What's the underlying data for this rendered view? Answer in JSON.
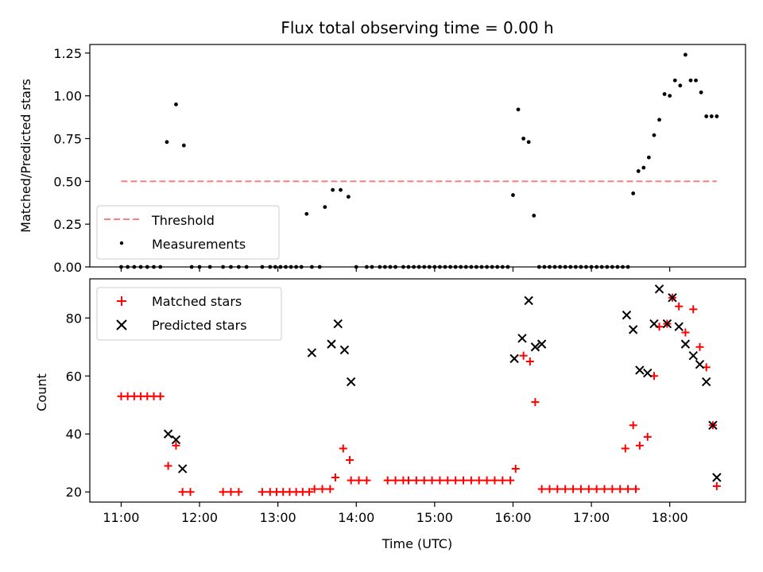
{
  "chart_data": [
    {
      "type": "scatter",
      "title": "Flux total observing time = 0.00 h",
      "xlabel": "",
      "ylabel": "Matched/Predicted stars",
      "ylim": [
        0,
        1.3
      ],
      "yticks": [
        "0.00",
        "0.25",
        "0.50",
        "0.75",
        "1.00",
        "1.25"
      ],
      "legend_position": "lower-left",
      "threshold": {
        "name": "Threshold",
        "value": 0.5,
        "x_start": "11:00",
        "x_end": "18:36",
        "color": "#ff7f7f"
      },
      "series": [
        {
          "name": "Measurements",
          "color": "#000000",
          "x": [
            "11:00",
            "11:05",
            "11:10",
            "11:15",
            "11:20",
            "11:25",
            "11:30",
            "11:35",
            "11:42",
            "11:48",
            "11:54",
            "12:00",
            "12:08",
            "12:18",
            "12:24",
            "12:30",
            "12:36",
            "12:48",
            "12:54",
            "12:58",
            "13:02",
            "13:06",
            "13:10",
            "13:14",
            "13:18",
            "13:22",
            "13:26",
            "13:32",
            "13:36",
            "13:42",
            "13:48",
            "13:54",
            "14:00",
            "14:08",
            "14:12",
            "14:18",
            "14:22",
            "14:26",
            "14:30",
            "14:36",
            "14:40",
            "14:44",
            "14:48",
            "14:52",
            "14:56",
            "15:00",
            "15:04",
            "15:08",
            "15:12",
            "15:16",
            "15:20",
            "15:24",
            "15:28",
            "15:32",
            "15:36",
            "15:40",
            "15:44",
            "15:48",
            "15:52",
            "15:56",
            "16:00",
            "16:04",
            "16:08",
            "16:12",
            "16:16",
            "16:20",
            "16:24",
            "16:28",
            "16:32",
            "16:36",
            "16:40",
            "16:44",
            "16:48",
            "16:52",
            "16:56",
            "17:00",
            "17:04",
            "17:08",
            "17:12",
            "17:16",
            "17:20",
            "17:24",
            "17:28",
            "17:32",
            "17:36",
            "17:40",
            "17:44",
            "17:48",
            "17:52",
            "17:56",
            "18:00",
            "18:04",
            "18:08",
            "18:12",
            "18:16",
            "18:20",
            "18:24",
            "18:28",
            "18:32",
            "18:36"
          ],
          "y": [
            0,
            0,
            0,
            0,
            0,
            0,
            0,
            0.73,
            0.95,
            0.71,
            0,
            0,
            0,
            0,
            0,
            0,
            0,
            0,
            0,
            0,
            0,
            0,
            0,
            0,
            0,
            0.31,
            0,
            0,
            0.35,
            0.45,
            0.45,
            0.41,
            0,
            0,
            0,
            0,
            0,
            0,
            0,
            0,
            0,
            0,
            0,
            0,
            0,
            0,
            0,
            0,
            0,
            0,
            0,
            0,
            0,
            0,
            0,
            0,
            0,
            0,
            0,
            0,
            0.42,
            0.92,
            0.75,
            0.73,
            0.3,
            0,
            0,
            0,
            0,
            0,
            0,
            0,
            0,
            0,
            0,
            0,
            0,
            0,
            0,
            0,
            0,
            0,
            0,
            0.43,
            0.56,
            0.58,
            0.64,
            0.77,
            0.86,
            1.01,
            1.0,
            1.09,
            1.06,
            1.24,
            1.09,
            1.09,
            1.02,
            0.88,
            0.88,
            0.88
          ]
        }
      ]
    },
    {
      "type": "scatter",
      "title": "",
      "xlabel": "Time (UTC)",
      "ylabel": "Count",
      "ylim": [
        16.5,
        93.5
      ],
      "yticks": [
        "20",
        "40",
        "60",
        "80"
      ],
      "xticks": [
        "11:00",
        "12:00",
        "13:00",
        "14:00",
        "15:00",
        "16:00",
        "17:00",
        "18:00"
      ],
      "xlim": [
        "10:36",
        "18:58"
      ],
      "legend_position": "upper-left",
      "series": [
        {
          "name": "Matched stars",
          "marker": "plus",
          "color": "#ff0000",
          "points": [
            [
              "11:00",
              53
            ],
            [
              "11:05",
              53
            ],
            [
              "11:10",
              53
            ],
            [
              "11:15",
              53
            ],
            [
              "11:20",
              53
            ],
            [
              "11:25",
              53
            ],
            [
              "11:30",
              53
            ],
            [
              "11:36",
              29
            ],
            [
              "11:42",
              36
            ],
            [
              "11:47",
              20
            ],
            [
              "11:53",
              20
            ],
            [
              "12:18",
              20
            ],
            [
              "12:24",
              20
            ],
            [
              "12:30",
              20
            ],
            [
              "12:48",
              20
            ],
            [
              "12:54",
              20
            ],
            [
              "12:59",
              20
            ],
            [
              "13:04",
              20
            ],
            [
              "13:09",
              20
            ],
            [
              "13:14",
              20
            ],
            [
              "13:19",
              20
            ],
            [
              "13:24",
              20
            ],
            [
              "13:28",
              21
            ],
            [
              "13:34",
              21
            ],
            [
              "13:40",
              21
            ],
            [
              "13:44",
              25
            ],
            [
              "13:50",
              35
            ],
            [
              "13:55",
              31
            ],
            [
              "13:56",
              24
            ],
            [
              "14:02",
              24
            ],
            [
              "14:08",
              24
            ],
            [
              "14:24",
              24
            ],
            [
              "14:30",
              24
            ],
            [
              "14:36",
              24
            ],
            [
              "14:40",
              24
            ],
            [
              "14:46",
              24
            ],
            [
              "14:52",
              24
            ],
            [
              "14:58",
              24
            ],
            [
              "15:04",
              24
            ],
            [
              "15:10",
              24
            ],
            [
              "15:16",
              24
            ],
            [
              "15:22",
              24
            ],
            [
              "15:28",
              24
            ],
            [
              "15:34",
              24
            ],
            [
              "15:40",
              24
            ],
            [
              "15:46",
              24
            ],
            [
              "15:52",
              24
            ],
            [
              "15:58",
              24
            ],
            [
              "16:02",
              28
            ],
            [
              "16:08",
              67
            ],
            [
              "16:13",
              65
            ],
            [
              "16:17",
              51
            ],
            [
              "16:22",
              21
            ],
            [
              "16:28",
              21
            ],
            [
              "16:34",
              21
            ],
            [
              "16:40",
              21
            ],
            [
              "16:46",
              21
            ],
            [
              "16:52",
              21
            ],
            [
              "16:58",
              21
            ],
            [
              "17:04",
              21
            ],
            [
              "17:10",
              21
            ],
            [
              "17:16",
              21
            ],
            [
              "17:22",
              21
            ],
            [
              "17:28",
              21
            ],
            [
              "17:34",
              21
            ],
            [
              "17:26",
              35
            ],
            [
              "17:32",
              43
            ],
            [
              "17:37",
              36
            ],
            [
              "17:43",
              39
            ],
            [
              "17:48",
              60
            ],
            [
              "17:52",
              77
            ],
            [
              "17:58",
              78
            ],
            [
              "18:02",
              87
            ],
            [
              "18:07",
              84
            ],
            [
              "18:12",
              75
            ],
            [
              "18:18",
              83
            ],
            [
              "18:23",
              70
            ],
            [
              "18:28",
              63
            ],
            [
              "18:33",
              43
            ],
            [
              "18:36",
              22
            ]
          ]
        },
        {
          "name": "Predicted stars",
          "marker": "x",
          "color": "#000000",
          "points": [
            [
              "11:36",
              40
            ],
            [
              "11:42",
              38
            ],
            [
              "11:47",
              28
            ],
            [
              "13:26",
              68
            ],
            [
              "13:41",
              71
            ],
            [
              "13:46",
              78
            ],
            [
              "13:51",
              69
            ],
            [
              "13:56",
              58
            ],
            [
              "16:01",
              66
            ],
            [
              "16:07",
              73
            ],
            [
              "16:12",
              86
            ],
            [
              "16:17",
              70
            ],
            [
              "16:22",
              71
            ],
            [
              "17:27",
              81
            ],
            [
              "17:32",
              76
            ],
            [
              "17:37",
              62
            ],
            [
              "17:43",
              61
            ],
            [
              "17:48",
              78
            ],
            [
              "17:52",
              90
            ],
            [
              "17:58",
              78
            ],
            [
              "18:02",
              87
            ],
            [
              "18:07",
              77
            ],
            [
              "18:12",
              71
            ],
            [
              "18:18",
              67
            ],
            [
              "18:23",
              64
            ],
            [
              "18:28",
              58
            ],
            [
              "18:33",
              43
            ],
            [
              "18:36",
              25
            ]
          ]
        }
      ]
    }
  ]
}
